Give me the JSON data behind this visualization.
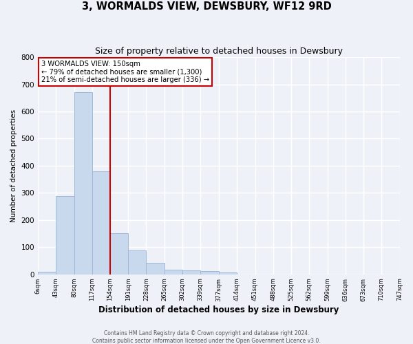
{
  "title": "3, WORMALDS VIEW, DEWSBURY, WF12 9RD",
  "subtitle": "Size of property relative to detached houses in Dewsbury",
  "xlabel": "Distribution of detached houses by size in Dewsbury",
  "ylabel": "Number of detached properties",
  "bin_edges": [
    6,
    43,
    80,
    117,
    154,
    191,
    228,
    265,
    302,
    339,
    377,
    414,
    451,
    488,
    525,
    562,
    599,
    636,
    673,
    710,
    747
  ],
  "bar_heights": [
    10,
    289,
    670,
    380,
    152,
    87,
    43,
    16,
    15,
    12,
    8,
    0,
    0,
    0,
    0,
    0,
    0,
    0,
    0,
    0
  ],
  "bar_color": "#c8d8ed",
  "bar_edge_color": "#a0b8d8",
  "background_color": "#eef2f8",
  "grid_color": "#ffffff",
  "vline_x": 154,
  "vline_color": "#cc0000",
  "annotation_box_color": "#cc0000",
  "annotation_line1": "3 WORMALDS VIEW: 150sqm",
  "annotation_line2": "← 79% of detached houses are smaller (1,300)",
  "annotation_line3": "21% of semi-detached houses are larger (336) →",
  "ylim": [
    0,
    800
  ],
  "yticks": [
    0,
    100,
    200,
    300,
    400,
    500,
    600,
    700,
    800
  ],
  "tick_labels": [
    "6sqm",
    "43sqm",
    "80sqm",
    "117sqm",
    "154sqm",
    "191sqm",
    "228sqm",
    "265sqm",
    "302sqm",
    "339sqm",
    "377sqm",
    "414sqm",
    "451sqm",
    "488sqm",
    "525sqm",
    "562sqm",
    "599sqm",
    "636sqm",
    "673sqm",
    "710sqm",
    "747sqm"
  ],
  "footer_line1": "Contains HM Land Registry data © Crown copyright and database right 2024.",
  "footer_line2": "Contains public sector information licensed under the Open Government Licence v3.0."
}
